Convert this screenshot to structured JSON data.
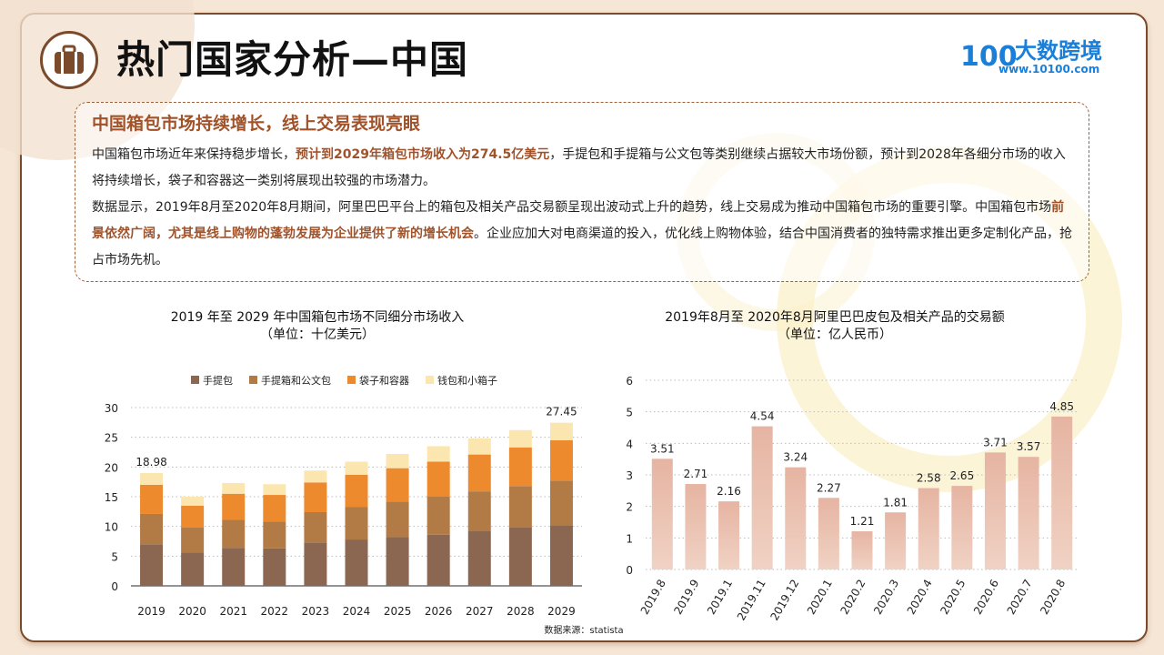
{
  "header": {
    "title": "热门国家分析—中国",
    "logo_name": "大数跨境",
    "logo_url": "www.10100.com",
    "logo_mark": "100"
  },
  "summary": {
    "subtitle": "中国箱包市场持续增长，线上交易表现亮眼",
    "para1_a": "中国箱包市场近年来保持稳步增长，",
    "para1_hl": "预计到2029年箱包市场收入为274.5亿美元",
    "para1_b": "，手提包和手提箱与公文包等类别继续占据较大市场份额，预计到2028年各细分市场的收入将持续增长，袋子和容器这一类别将展现出较强的市场潜力。",
    "para2_a": "数据显示，2019年8月至2020年8月期间，阿里巴巴平台上的箱包及相关产品交易额呈现出波动式上升的趋势，线上交易成为推动中国箱包市场的重要引擎。中国箱包市场",
    "para2_hl": "前景依然广阔，尤其是线上购物的蓬勃发展为企业提供了新的增长机会",
    "para2_b": "。企业应加大对电商渠道的投入，优化线上购物体验，结合中国消费者的独特需求推出更多定制化产品，抢占市场先机。"
  },
  "source": "数据来源：statista",
  "colors": {
    "brown_dark": "#8b6650",
    "brown_mid": "#b27a45",
    "orange": "#ee8a2e",
    "cream": "#fbe6b0",
    "pink_bar": "#ecc6b6",
    "accent": "#a0532a"
  },
  "chart_data": [
    {
      "type": "bar",
      "stacked": true,
      "title": "2019 年至 2029 年中国箱包市场不同细分市场收入",
      "subtitle": "（单位：十亿美元）",
      "categories": [
        "2019",
        "2020",
        "2021",
        "2022",
        "2023",
        "2024",
        "2025",
        "2026",
        "2027",
        "2028",
        "2029"
      ],
      "series": [
        {
          "name": "手提包",
          "values": [
            7.0,
            5.6,
            6.4,
            6.3,
            7.3,
            7.8,
            8.2,
            8.6,
            9.3,
            9.8,
            10.2
          ]
        },
        {
          "name": "手提箱和公文包",
          "values": [
            5.1,
            4.2,
            4.7,
            4.5,
            5.1,
            5.5,
            6.0,
            6.4,
            6.6,
            7.0,
            7.5
          ]
        },
        {
          "name": "袋子和容器",
          "values": [
            4.9,
            3.7,
            4.4,
            4.5,
            5.0,
            5.4,
            5.6,
            5.9,
            6.2,
            6.5,
            6.8
          ]
        },
        {
          "name": "钱包和小箱子",
          "values": [
            1.98,
            1.5,
            1.8,
            1.8,
            2.0,
            2.2,
            2.4,
            2.6,
            2.7,
            2.9,
            2.95
          ]
        }
      ],
      "totals_labels": {
        "2019": "18.98",
        "2029": "27.45"
      },
      "yticks": [
        "0",
        "5",
        "10",
        "15",
        "20",
        "25",
        "30"
      ],
      "ylim": [
        0,
        30
      ],
      "legend": "top",
      "grid": "dotted"
    },
    {
      "type": "bar",
      "title": "2019年8月至 2020年8月阿里巴巴皮包及相关产品的交易额",
      "subtitle": "（单位：亿人民币）",
      "categories": [
        "2019.8",
        "2019.9",
        "2019.1",
        "2019.11",
        "2019.12",
        "2020.1",
        "2020.2",
        "2020.3",
        "2020.4",
        "2020.5",
        "2020.6",
        "2020.7",
        "2020.8"
      ],
      "values": [
        3.51,
        2.71,
        2.16,
        4.54,
        3.24,
        2.27,
        1.21,
        1.81,
        2.58,
        2.65,
        3.71,
        3.57,
        4.85
      ],
      "value_labels": [
        "3.51",
        "2.71",
        "2.16",
        "4.54",
        "3.24",
        "2.27",
        "1.21",
        "1.81",
        "2.58",
        "2.65",
        "3.71",
        "3.57",
        "4.85"
      ],
      "yticks": [
        "0",
        "1",
        "2",
        "3",
        "4",
        "5",
        "6"
      ],
      "ylim": [
        0,
        6
      ],
      "grid": "dotted"
    }
  ]
}
